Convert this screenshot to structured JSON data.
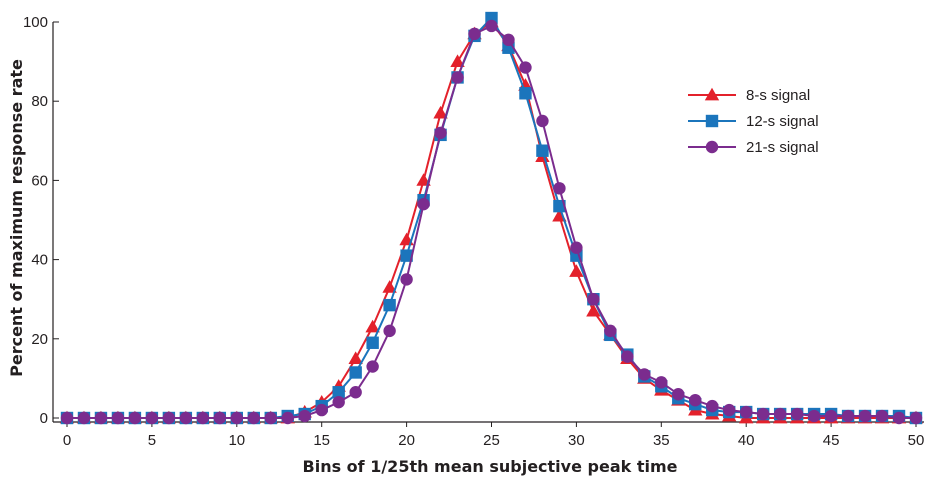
{
  "chart_data": {
    "type": "line",
    "title": "",
    "xlabel": "Bins of 1/25th mean subjective peak time",
    "ylabel": "Percent of maximum response rate",
    "xlim": [
      0,
      50
    ],
    "ylim": [
      0,
      100
    ],
    "x_ticks": [
      0,
      5,
      10,
      15,
      20,
      25,
      30,
      35,
      40,
      45,
      50
    ],
    "y_ticks": [
      0,
      20,
      40,
      60,
      80,
      100
    ],
    "grid": false,
    "legend_position": "top-right",
    "x": [
      0,
      1,
      2,
      3,
      4,
      5,
      6,
      7,
      8,
      9,
      10,
      11,
      12,
      13,
      14,
      15,
      16,
      17,
      18,
      19,
      20,
      21,
      22,
      23,
      24,
      25,
      26,
      27,
      28,
      29,
      30,
      31,
      32,
      33,
      34,
      35,
      36,
      37,
      38,
      39,
      40,
      41,
      42,
      43,
      44,
      45,
      46,
      47,
      48,
      49,
      50
    ],
    "series": [
      {
        "name": "8-s signal",
        "color": "#e3212b",
        "marker": "triangle",
        "values": [
          0,
          0,
          0,
          0,
          0,
          0,
          0,
          0,
          0,
          0,
          0,
          0,
          0,
          0,
          1.5,
          4,
          8,
          15,
          23,
          33,
          45,
          60,
          77,
          90,
          97,
          100,
          94,
          84,
          66,
          51,
          37,
          27,
          21,
          15,
          10,
          7,
          4.5,
          2,
          1,
          0.5,
          0,
          0,
          0,
          0,
          0,
          0,
          0,
          0,
          0,
          0,
          0
        ]
      },
      {
        "name": "12-s signal",
        "color": "#1b75bc",
        "marker": "square",
        "values": [
          0,
          0,
          0,
          0,
          0,
          0,
          0,
          0,
          0,
          0,
          0,
          0,
          0,
          0.5,
          1,
          3,
          6.5,
          11.5,
          19,
          28.5,
          41,
          55,
          71.5,
          86,
          96.5,
          101,
          93.5,
          82,
          67.5,
          53.5,
          41,
          30,
          21,
          16,
          10.5,
          8,
          5,
          3.5,
          2,
          1.5,
          1.5,
          1,
          1,
          1,
          1,
          1,
          0.5,
          0.5,
          0.5,
          0.5,
          0
        ]
      },
      {
        "name": "21-s signal",
        "color": "#7b2c8e",
        "marker": "circle",
        "values": [
          0,
          0,
          0,
          0,
          0,
          0,
          0,
          0,
          0,
          0,
          0,
          0,
          0,
          0,
          0.5,
          2,
          4,
          6.5,
          13,
          22,
          35,
          54,
          72,
          86,
          97,
          99,
          95.5,
          88.5,
          75,
          58,
          43,
          30,
          22,
          15.5,
          11,
          9,
          6,
          4.5,
          3,
          2,
          1.5,
          1,
          1,
          1,
          0.5,
          0.5,
          0.5,
          0.5,
          0.5,
          0,
          0
        ]
      }
    ]
  }
}
